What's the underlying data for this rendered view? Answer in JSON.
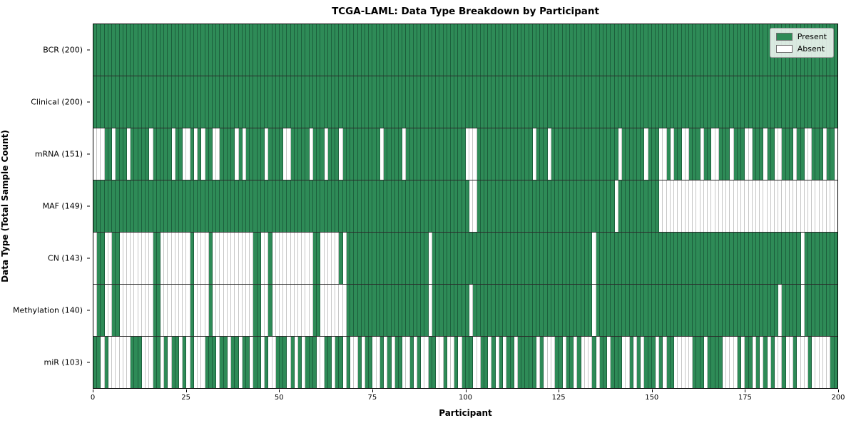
{
  "title": "TCGA-LAML: Data Type Breakdown by Participant",
  "chart_data": {
    "type": "heatmap",
    "xlabel": "Participant",
    "ylabel": "Data Type (Total Sample Count)",
    "x_range": [
      0,
      200
    ],
    "n_participants": 200,
    "x_ticks": [
      0,
      25,
      50,
      75,
      100,
      125,
      150,
      175,
      200
    ],
    "grid": "row-separators",
    "legend": {
      "position": "upper right",
      "present_label": "Present",
      "absent_label": "Absent"
    },
    "colors": {
      "present": "#2e8b57",
      "absent": "#ffffff",
      "present_edge": "#145032",
      "absent_edge": "#c6c6c6",
      "plot_border": "#000000"
    },
    "rows": [
      {
        "label": "BCR (200)",
        "data_type": "BCR",
        "present_count": 200,
        "absent_participants": []
      },
      {
        "label": "Clinical (200)",
        "data_type": "Clinical",
        "present_count": 200,
        "absent_participants": []
      },
      {
        "label": "mRNA (151)",
        "data_type": "mRNA",
        "present_count": 151,
        "absent_participants": [
          0,
          1,
          2,
          5,
          9,
          15,
          21,
          24,
          25,
          27,
          29,
          32,
          33,
          38,
          40,
          46,
          51,
          52,
          58,
          62,
          66,
          77,
          83,
          100,
          101,
          102,
          118,
          122,
          141,
          148,
          152,
          153,
          155,
          158,
          159,
          163,
          166,
          167,
          171,
          175,
          176,
          180,
          183,
          184,
          188,
          191,
          192,
          196,
          199
        ]
      },
      {
        "label": "MAF (149)",
        "data_type": "MAF",
        "present_count": 149,
        "absent_participants": [
          101,
          102,
          140,
          152,
          153,
          154,
          155,
          156,
          157,
          158,
          159,
          160,
          161,
          162,
          163,
          164,
          165,
          166,
          167,
          168,
          169,
          170,
          171,
          172,
          173,
          174,
          175,
          176,
          177,
          178,
          179,
          180,
          181,
          182,
          183,
          184,
          185,
          186,
          187,
          188,
          189,
          190,
          191,
          192,
          193,
          194,
          195,
          196,
          197,
          198,
          199
        ]
      },
      {
        "label": "CN (143)",
        "data_type": "CN",
        "present_count": 143,
        "absent_participants": [
          0,
          3,
          4,
          7,
          8,
          9,
          10,
          11,
          12,
          13,
          14,
          15,
          18,
          19,
          20,
          21,
          22,
          23,
          24,
          25,
          27,
          28,
          29,
          30,
          32,
          33,
          34,
          35,
          36,
          37,
          38,
          39,
          40,
          41,
          42,
          45,
          46,
          48,
          49,
          50,
          51,
          52,
          53,
          54,
          55,
          56,
          57,
          58,
          61,
          62,
          63,
          64,
          65,
          67,
          90,
          134,
          190
        ]
      },
      {
        "label": "Methylation (140)",
        "data_type": "Methylation",
        "present_count": 140,
        "absent_participants": [
          0,
          3,
          4,
          7,
          8,
          9,
          10,
          11,
          12,
          13,
          14,
          15,
          18,
          19,
          20,
          21,
          22,
          23,
          24,
          25,
          27,
          28,
          29,
          30,
          32,
          33,
          34,
          35,
          36,
          37,
          38,
          39,
          40,
          41,
          42,
          45,
          46,
          48,
          49,
          50,
          51,
          52,
          53,
          54,
          55,
          56,
          57,
          58,
          61,
          62,
          63,
          64,
          65,
          66,
          67,
          90,
          101,
          134,
          184,
          190
        ]
      },
      {
        "label": "miR (103)",
        "data_type": "miR",
        "present_count": 103,
        "absent_participants": [
          2,
          4,
          5,
          6,
          7,
          8,
          9,
          13,
          14,
          15,
          18,
          20,
          23,
          25,
          27,
          28,
          29,
          33,
          36,
          39,
          42,
          45,
          47,
          48,
          52,
          54,
          56,
          60,
          61,
          64,
          67,
          69,
          70,
          72,
          75,
          76,
          78,
          80,
          83,
          84,
          86,
          88,
          89,
          92,
          93,
          95,
          96,
          98,
          102,
          103,
          106,
          108,
          110,
          113,
          119,
          121,
          122,
          123,
          126,
          129,
          131,
          132,
          133,
          135,
          138,
          142,
          143,
          145,
          147,
          151,
          153,
          156,
          157,
          158,
          159,
          160,
          164,
          169,
          170,
          171,
          172,
          174,
          177,
          179,
          181,
          183,
          184,
          186,
          187,
          189,
          190,
          191,
          193,
          194,
          195,
          196,
          197
        ]
      }
    ]
  }
}
